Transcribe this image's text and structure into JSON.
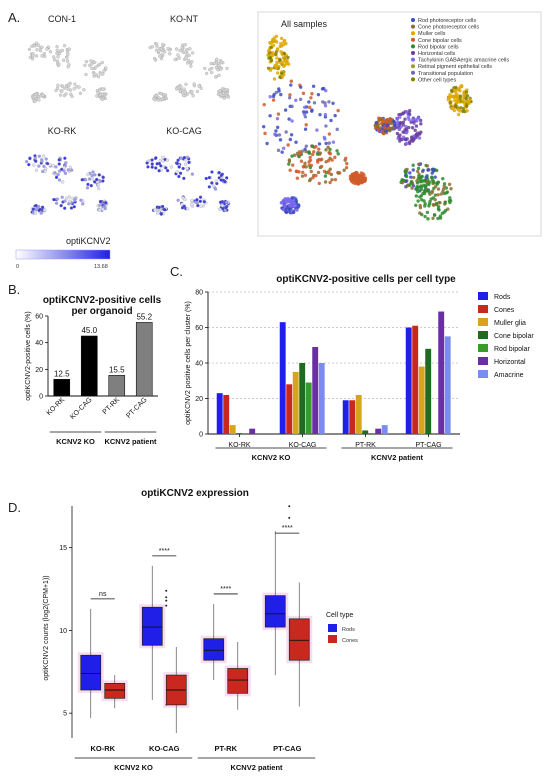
{
  "panels": {
    "a": "A.",
    "b": "B.",
    "c": "C.",
    "d": "D."
  },
  "umap": {
    "panel_titles": [
      "CON-1",
      "KO-NT",
      "KO-RK",
      "KO-CAG",
      "All samples"
    ],
    "colorbar_label": "optiKCNV2",
    "colorbar_min": "0",
    "colorbar_max": "13.68",
    "legend": [
      {
        "label": "Rod photoreceptor cells",
        "color": "#3b4cc0"
      },
      {
        "label": "Cone photoreceptor cells",
        "color": "#8c6d31"
      },
      {
        "label": "Muller cells",
        "color": "#e0a800"
      },
      {
        "label": "Cone bipolar cells",
        "color": "#d05a2a"
      },
      {
        "label": "Rod bipolar cells",
        "color": "#2e8b2e"
      },
      {
        "label": "Horizontal cells",
        "color": "#6a3d9a"
      },
      {
        "label": "Tachykinin GABAergic amacrine cells",
        "color": "#7b68ee"
      },
      {
        "label": "Retinal pigment epithelial cells",
        "color": "#9e9e2a"
      },
      {
        "label": "Transitional population",
        "color": "#6b6bb0"
      },
      {
        "label": "Other cell types",
        "color": "#808000"
      }
    ]
  },
  "chart_data": [
    {
      "type": "bar",
      "title": "optiKCNV2-positive cells per organoid",
      "ylabel": "optiKCNV2-positive cells (%)",
      "ylim": [
        0,
        60
      ],
      "yticks": [
        0,
        20,
        40,
        60
      ],
      "categories": [
        "KO-RK",
        "KO-CAG",
        "PT-RK",
        "PT-CAG"
      ],
      "values": [
        12.5,
        45.0,
        15.5,
        55.2
      ],
      "value_labels": [
        "12.5",
        "45.0",
        "15.5",
        "55.2"
      ],
      "bar_colors": [
        "#000000",
        "#000000",
        "#7f7f7f",
        "#7f7f7f"
      ],
      "groups": [
        {
          "label": "KCNV2 KO",
          "members": [
            0,
            1
          ]
        },
        {
          "label": "KCNV2 patient",
          "members": [
            2,
            3
          ]
        }
      ]
    },
    {
      "type": "bar",
      "title": "optiKCNV2-positive cells per cell type",
      "ylabel": "optiKCNV2 positive cells per cluster (%)",
      "ylim": [
        0,
        80
      ],
      "yticks": [
        0,
        20,
        40,
        60,
        80
      ],
      "grid": true,
      "legend_position": "top-right",
      "categories": [
        "KO-RK",
        "KO-CAG",
        "PT-RK",
        "PT-CAG"
      ],
      "series": [
        {
          "name": "Rods",
          "color": "#1f1fe8",
          "values": [
            23,
            63,
            19,
            60
          ]
        },
        {
          "name": "Cones",
          "color": "#c8281e",
          "values": [
            22,
            28,
            19,
            61
          ]
        },
        {
          "name": "Muller glia",
          "color": "#d6a51c",
          "values": [
            5,
            35,
            22,
            38
          ]
        },
        {
          "name": "Cone bipolar",
          "color": "#1f6b1f",
          "values": [
            0.5,
            40,
            2,
            48
          ]
        },
        {
          "name": "Rod bipolar",
          "color": "#3a9a2a",
          "values": [
            0,
            29,
            0.5,
            0
          ]
        },
        {
          "name": "Horizontal",
          "color": "#6a2fa8",
          "values": [
            3,
            49,
            3,
            69
          ]
        },
        {
          "name": "Amacrine",
          "color": "#7b8cf0",
          "values": [
            0,
            40,
            5,
            55
          ]
        }
      ],
      "groups": [
        {
          "label": "KCNV2 KO",
          "members": [
            0,
            1
          ]
        },
        {
          "label": "KCNV2 patient",
          "members": [
            2,
            3
          ]
        }
      ]
    },
    {
      "type": "box",
      "title": "optiKCNV2 expression",
      "ylabel": "optiKCNV2 counts (log2(CPM+1))",
      "ylim": [
        3.5,
        18
      ],
      "yticks": [
        5,
        10,
        15
      ],
      "categories": [
        "KO-RK",
        "KO-CAG",
        "PT-RK",
        "PT-CAG"
      ],
      "legend_title": "Cell type",
      "legend_position": "right",
      "series": [
        {
          "name": "Rods",
          "color": "#1f1fe8",
          "boxes": [
            {
              "min": 4.7,
              "q1": 6.4,
              "median": 7.4,
              "q3": 8.5,
              "max": 11.3,
              "outliers": []
            },
            {
              "min": 5.8,
              "q1": 9.1,
              "median": 10.2,
              "q3": 11.4,
              "max": 13.9,
              "outliers": [
                5.5,
                11.5,
                11.8,
                12.0,
                12.4
              ]
            },
            {
              "min": 7.0,
              "q1": 8.2,
              "median": 8.8,
              "q3": 9.5,
              "max": 11.6,
              "outliers": []
            },
            {
              "min": 7.3,
              "q1": 10.2,
              "median": 11.0,
              "q3": 12.1,
              "max": 16.0,
              "outliers": [
                16.8,
                17.5
              ]
            }
          ]
        },
        {
          "name": "Cones",
          "color": "#c8281e",
          "boxes": [
            {
              "min": 5.3,
              "q1": 5.9,
              "median": 6.4,
              "q3": 6.8,
              "max": 7.3,
              "outliers": []
            },
            {
              "min": 3.8,
              "q1": 5.5,
              "median": 6.4,
              "q3": 7.3,
              "max": 9.0,
              "outliers": []
            },
            {
              "min": 5.2,
              "q1": 6.2,
              "median": 7.0,
              "q3": 7.7,
              "max": 9.3,
              "outliers": []
            },
            {
              "min": 5.4,
              "q1": 8.2,
              "median": 9.4,
              "q3": 10.7,
              "max": 12.9,
              "outliers": []
            }
          ]
        }
      ],
      "significance": [
        "ns",
        "****",
        "****",
        "****"
      ],
      "groups": [
        {
          "label": "KCNV2 KO",
          "members": [
            0,
            1
          ]
        },
        {
          "label": "KCNV2 patient",
          "members": [
            2,
            3
          ]
        }
      ]
    }
  ]
}
